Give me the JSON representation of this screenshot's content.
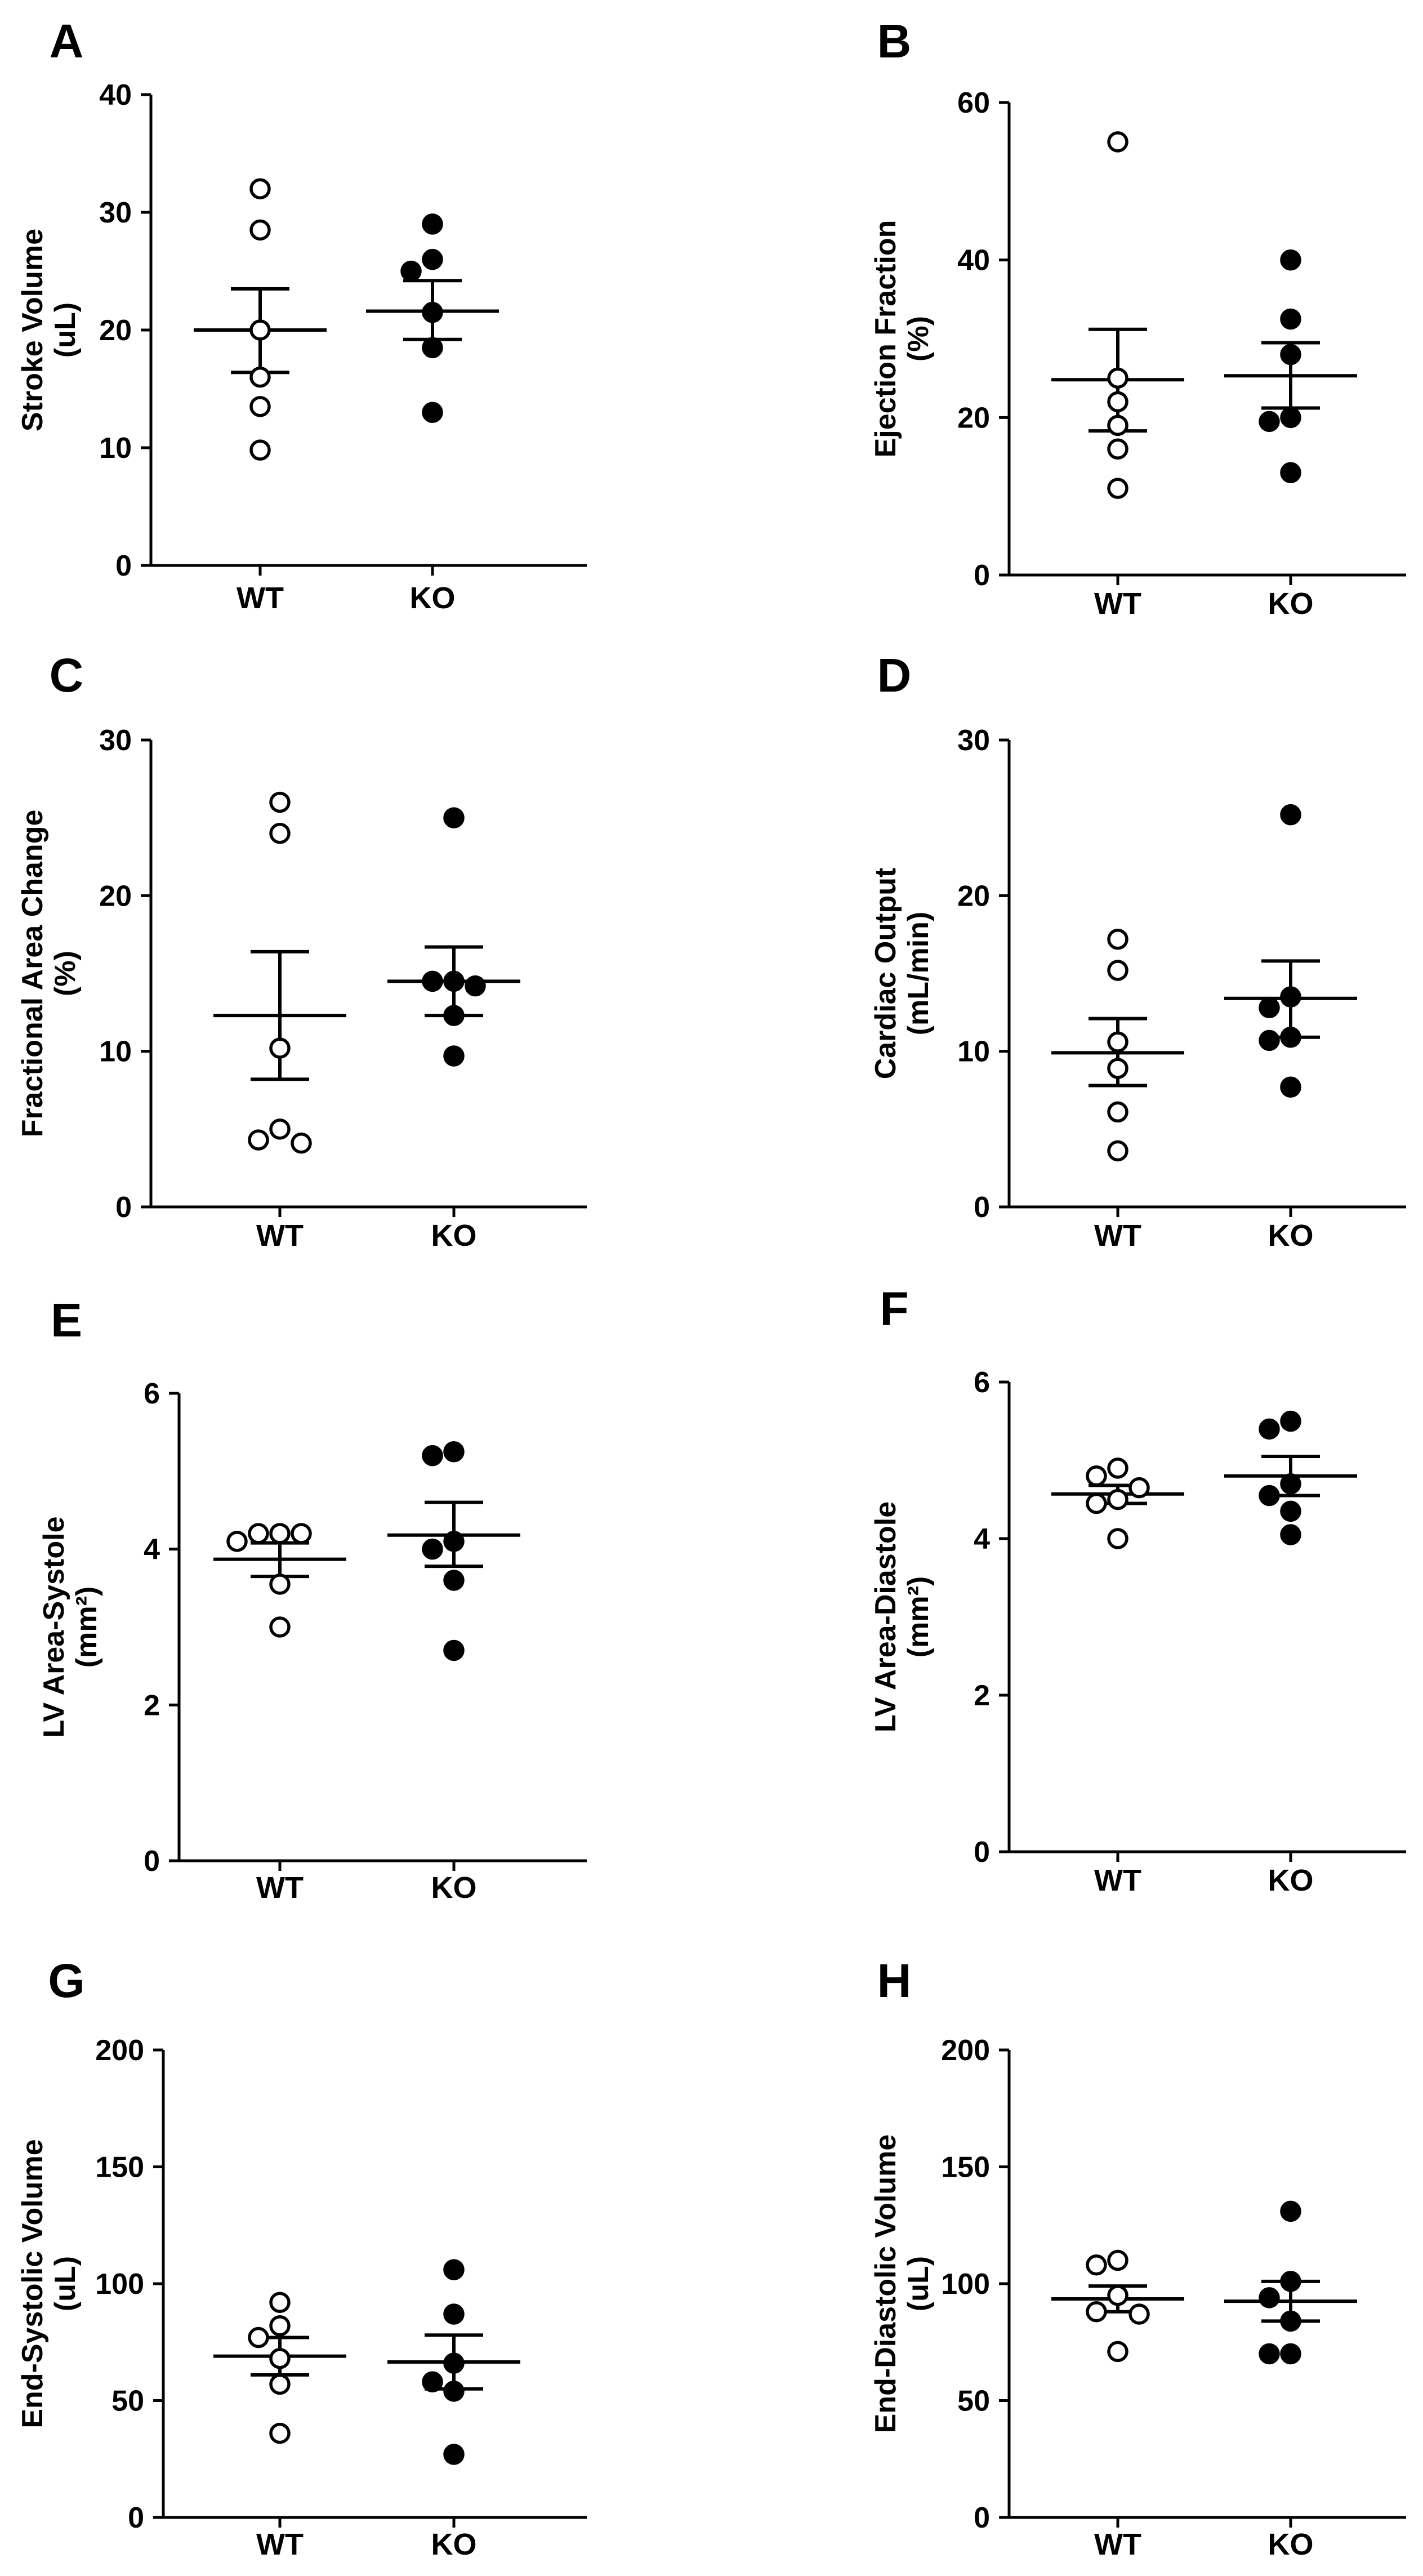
{
  "figure": {
    "background": "#ffffff",
    "ink": "#000000"
  },
  "chart_data": [
    {
      "panel": "A",
      "type": "scatter",
      "ylabel": [
        "Stroke Volume",
        "(uL)"
      ],
      "ylim": [
        0,
        40
      ],
      "yticks": [
        0,
        10,
        20,
        30,
        40
      ],
      "categories": [
        "WT",
        "KO"
      ],
      "series": [
        {
          "name": "WT",
          "marker": "open",
          "values": [
            32,
            28.5,
            20,
            16,
            13.5,
            9.8
          ],
          "mean": 20,
          "sem_low": 16.4,
          "sem_high": 23.5
        },
        {
          "name": "KO",
          "marker": "filled",
          "values": [
            29,
            26,
            25,
            21.5,
            18.5,
            13
          ],
          "mean": 21.6,
          "sem_low": 19.2,
          "sem_high": 24.2
        }
      ]
    },
    {
      "panel": "B",
      "type": "scatter",
      "ylabel": [
        "Ejection Fraction",
        "(%)"
      ],
      "ylim": [
        0,
        60
      ],
      "yticks": [
        0,
        20,
        40,
        60
      ],
      "categories": [
        "WT",
        "KO"
      ],
      "series": [
        {
          "name": "WT",
          "marker": "open",
          "values": [
            55,
            25,
            22,
            19,
            16,
            11
          ],
          "mean": 24.8,
          "sem_low": 18.3,
          "sem_high": 31.2
        },
        {
          "name": "KO",
          "marker": "filled",
          "values": [
            40,
            32.5,
            28,
            20,
            19.5,
            13
          ],
          "mean": 25.3,
          "sem_low": 21.2,
          "sem_high": 29.5
        }
      ]
    },
    {
      "panel": "C",
      "type": "scatter",
      "ylabel": [
        "Fractional Area Change",
        "(%)"
      ],
      "ylim": [
        0,
        30
      ],
      "yticks": [
        0,
        10,
        20,
        30
      ],
      "categories": [
        "WT",
        "KO"
      ],
      "series": [
        {
          "name": "WT",
          "marker": "open",
          "values": [
            26,
            24,
            10.2,
            5,
            4.3,
            4.1
          ],
          "mean": 12.3,
          "sem_low": 8.2,
          "sem_high": 16.4
        },
        {
          "name": "KO",
          "marker": "filled",
          "values": [
            25,
            14.5,
            14.2,
            14.5,
            12.3,
            9.7
          ],
          "mean": 14.5,
          "sem_low": 12.3,
          "sem_high": 16.7
        }
      ]
    },
    {
      "panel": "D",
      "type": "scatter",
      "ylabel": [
        "Cardiac Output",
        "(mL/min)"
      ],
      "ylim": [
        0,
        30
      ],
      "yticks": [
        0,
        10,
        20,
        30
      ],
      "categories": [
        "WT",
        "KO"
      ],
      "series": [
        {
          "name": "WT",
          "marker": "open",
          "values": [
            17.2,
            15.2,
            10.6,
            8.9,
            6.1,
            3.6
          ],
          "mean": 9.9,
          "sem_low": 7.8,
          "sem_high": 12.1
        },
        {
          "name": "KO",
          "marker": "filled",
          "values": [
            25.2,
            13.5,
            12.8,
            10.9,
            10.7,
            7.7
          ],
          "mean": 13.4,
          "sem_low": 10.9,
          "sem_high": 15.8
        }
      ]
    },
    {
      "panel": "E",
      "type": "scatter",
      "ylabel": [
        "LV Area-Systole",
        "(mm²)"
      ],
      "ylim": [
        0,
        6
      ],
      "yticks": [
        0,
        2,
        4,
        6
      ],
      "categories": [
        "WT",
        "KO"
      ],
      "series": [
        {
          "name": "WT",
          "marker": "open",
          "values": [
            4.2,
            4.2,
            4.2,
            4.1,
            3.55,
            3.0
          ],
          "mean": 3.87,
          "sem_low": 3.65,
          "sem_high": 4.08
        },
        {
          "name": "KO",
          "marker": "filled",
          "values": [
            5.25,
            5.2,
            4.1,
            4.0,
            3.6,
            2.7
          ],
          "mean": 4.18,
          "sem_low": 3.78,
          "sem_high": 4.6
        }
      ]
    },
    {
      "panel": "F",
      "type": "scatter",
      "ylabel": [
        "LV Area-Diastole",
        "(mm²)"
      ],
      "ylim": [
        0,
        6
      ],
      "yticks": [
        0,
        2,
        4,
        6
      ],
      "categories": [
        "WT",
        "KO"
      ],
      "series": [
        {
          "name": "WT",
          "marker": "open",
          "values": [
            4.9,
            4.8,
            4.65,
            4.5,
            4.45,
            4.0
          ],
          "mean": 4.57,
          "sem_low": 4.45,
          "sem_high": 4.68
        },
        {
          "name": "KO",
          "marker": "filled",
          "values": [
            5.5,
            5.4,
            4.7,
            4.55,
            4.35,
            4.05
          ],
          "mean": 4.8,
          "sem_low": 4.55,
          "sem_high": 5.05
        }
      ]
    },
    {
      "panel": "G",
      "type": "scatter",
      "ylabel": [
        "End-Systolic Volume",
        "(uL)"
      ],
      "ylim": [
        0,
        200
      ],
      "yticks": [
        0,
        50,
        100,
        150,
        200
      ],
      "categories": [
        "WT",
        "KO"
      ],
      "series": [
        {
          "name": "WT",
          "marker": "open",
          "values": [
            92,
            82,
            77,
            68,
            57,
            36
          ],
          "mean": 69,
          "sem_low": 61,
          "sem_high": 77
        },
        {
          "name": "KO",
          "marker": "filled",
          "values": [
            106,
            87,
            66,
            58,
            54,
            27
          ],
          "mean": 66.5,
          "sem_low": 55,
          "sem_high": 78
        }
      ]
    },
    {
      "panel": "H",
      "type": "scatter",
      "ylabel": [
        "End-Diastolic Volume",
        "(uL)"
      ],
      "ylim": [
        0,
        200
      ],
      "yticks": [
        0,
        50,
        100,
        150,
        200
      ],
      "categories": [
        "WT",
        "KO"
      ],
      "series": [
        {
          "name": "WT",
          "marker": "open",
          "values": [
            110,
            108,
            95,
            88,
            87,
            71
          ],
          "mean": 93.5,
          "sem_low": 88,
          "sem_high": 99
        },
        {
          "name": "KO",
          "marker": "filled",
          "values": [
            131,
            101,
            94,
            84,
            70,
            70
          ],
          "mean": 92.5,
          "sem_low": 84,
          "sem_high": 101
        }
      ]
    }
  ]
}
